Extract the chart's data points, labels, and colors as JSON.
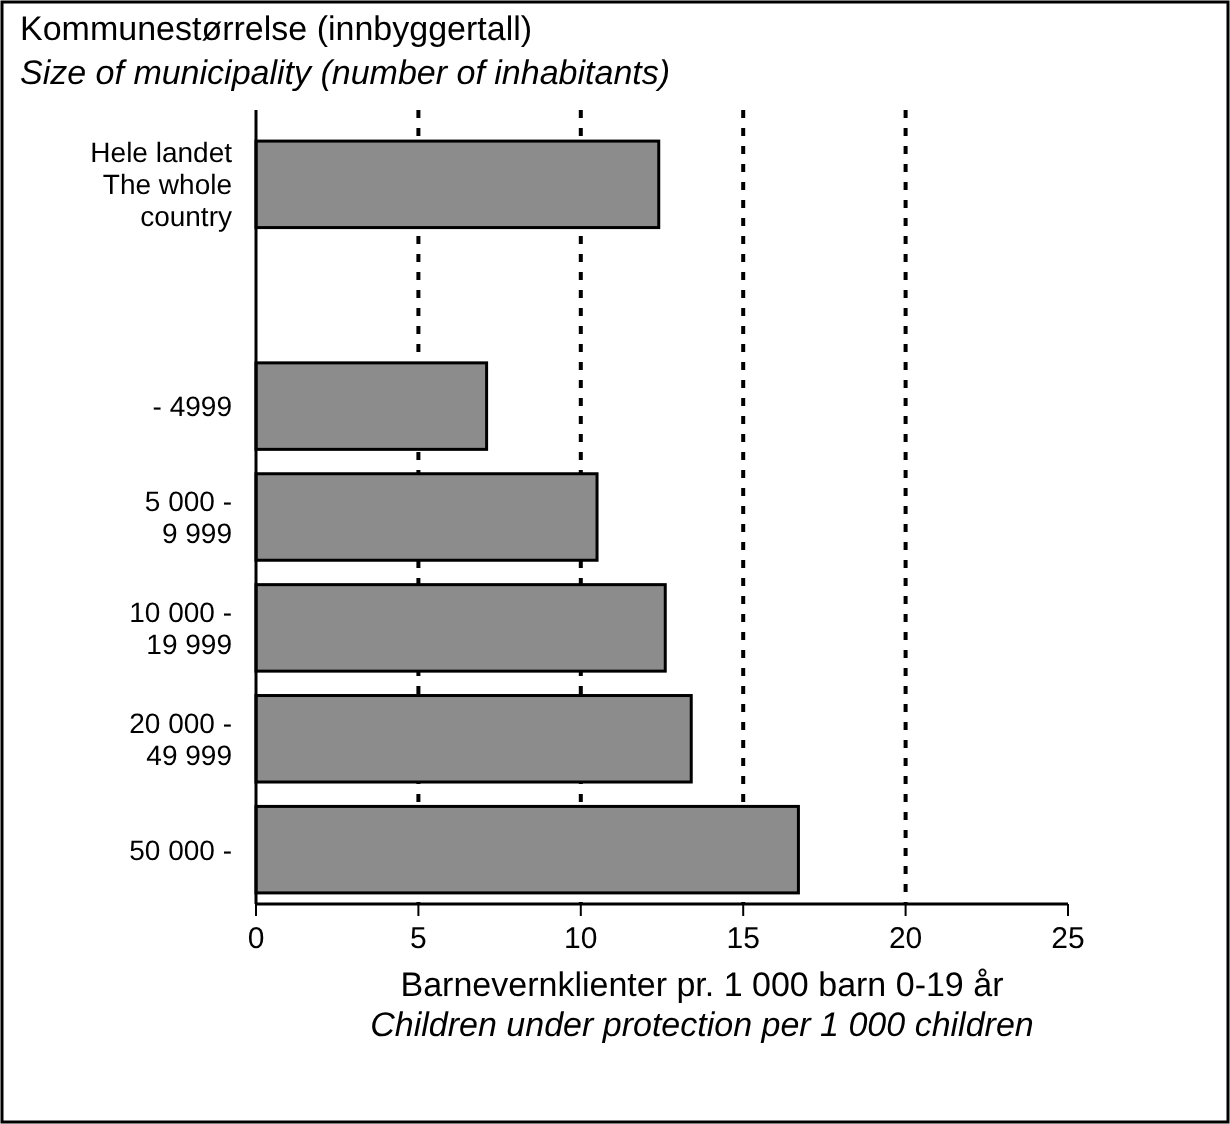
{
  "chart_data": {
    "type": "bar",
    "orientation": "horizontal",
    "title": "Kommunestørrelse (innbyggertall)",
    "subtitle": "Size of municipality (number of inhabitants)",
    "categories": [
      "Hele landet\nThe whole\ncountry",
      null,
      "- 4999",
      "5 000 -\n9 999",
      "10 000 -\n19 999",
      "20 000 -\n49 999",
      "50 000 -"
    ],
    "values": [
      12.4,
      null,
      7.1,
      10.5,
      12.6,
      13.4,
      16.7
    ],
    "color": "#8c8c8c",
    "xlim": [
      0,
      25
    ],
    "xticks": [
      0,
      5,
      10,
      15,
      20,
      25
    ],
    "grid": "x",
    "line_style": "dashed",
    "xlabel": "Barnevernklienter pr. 1 000 barn 0-19 år\nChildren under protection per 1 000 children"
  }
}
